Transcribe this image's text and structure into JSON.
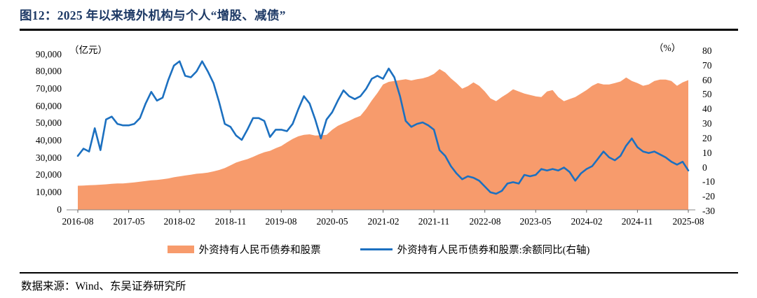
{
  "figure": {
    "title": "图12：2025 年以来境外机构与个人“增股、减债”"
  },
  "footer": {
    "source": "数据来源：Wind、东吴证券研究所"
  },
  "colors": {
    "title_navy": "#1E3A66",
    "area_orange": "#F79B6C",
    "line_blue": "#1C70C0",
    "axis_line": "#8a8a8a",
    "text_black": "#000000"
  },
  "chart_data": {
    "type": "area",
    "combo": "area(left-axis) + line(right-axis)",
    "x_start": "2016-08",
    "x_end": "2025-08",
    "x_frequency": "monthly",
    "x_tick_labels": [
      "2016-08",
      "2017-05",
      "2018-02",
      "2018-11",
      "2019-08",
      "2020-05",
      "2021-02",
      "2021-11",
      "2022-08",
      "2023-05",
      "2024-02",
      "2024-11",
      "2025-08"
    ],
    "x_tick_month_step": 9,
    "left_axis": {
      "unit": "（亿元）",
      "min": 0,
      "max": 90000,
      "ticks": [
        "90,000",
        "80,000",
        "70,000",
        "60,000",
        "50,000",
        "40,000",
        "30,000",
        "20,000",
        "10,000",
        "0"
      ]
    },
    "right_axis": {
      "unit": "（%）",
      "min": -30,
      "max": 80,
      "ticks": [
        "80",
        "70",
        "60",
        "50",
        "40",
        "30",
        "20",
        "10",
        "0",
        "-10",
        "-20",
        "-30"
      ]
    },
    "grid": false,
    "legend_position": "bottom-center",
    "series": [
      {
        "name": "外资持有人民币债券和股票",
        "type": "area",
        "axis": "left",
        "color": "#F79B6C",
        "values": [
          13800,
          13900,
          14100,
          14200,
          14400,
          14600,
          14900,
          15100,
          15100,
          15400,
          15700,
          16100,
          16500,
          16900,
          17100,
          17500,
          18000,
          18700,
          19200,
          19700,
          20200,
          20700,
          21000,
          21400,
          22100,
          22900,
          24000,
          25600,
          27200,
          28300,
          29200,
          30500,
          32000,
          33200,
          34000,
          35500,
          36800,
          38900,
          40900,
          42400,
          43300,
          43600,
          42900,
          43000,
          43300,
          46200,
          48500,
          50000,
          51400,
          53000,
          54300,
          58300,
          63200,
          67500,
          72500,
          74000,
          74500,
          75000,
          75500,
          74800,
          75500,
          76000,
          77000,
          78600,
          81400,
          79400,
          76000,
          73300,
          70000,
          71500,
          73700,
          71700,
          68400,
          64400,
          62800,
          65200,
          67200,
          69700,
          68400,
          67200,
          66400,
          65600,
          65200,
          68400,
          69200,
          65200,
          62800,
          64000,
          65200,
          67200,
          69200,
          71700,
          73300,
          72500,
          72500,
          73300,
          74200,
          76500,
          74500,
          73300,
          71700,
          72500,
          74500,
          75300,
          75300,
          74500,
          71700,
          73700,
          75000
        ]
      },
      {
        "name": "外资持有人民币债券和股票:余额同比(右轴)",
        "type": "line",
        "axis": "right",
        "color": "#1C70C0",
        "values": [
          8,
          13,
          11,
          27,
          12,
          33,
          35,
          30,
          29,
          29,
          30,
          34,
          44,
          52,
          46,
          48,
          60,
          70,
          73,
          63,
          62,
          66,
          73,
          66,
          58,
          45,
          30,
          28,
          22,
          19,
          26,
          34,
          34,
          32,
          21,
          26,
          26,
          25,
          30,
          40,
          49,
          44,
          33,
          20,
          33,
          38,
          46,
          53,
          49,
          47,
          49,
          54,
          61,
          63,
          61,
          68,
          62,
          49,
          32,
          28,
          30,
          31,
          29,
          26,
          12,
          8,
          1,
          -4,
          -8,
          -6,
          -7,
          -9,
          -13,
          -17,
          -18,
          -16,
          -11,
          -10,
          -11,
          -5,
          -6,
          -5,
          -1,
          -2,
          -1,
          -2,
          0,
          -3,
          -9,
          -4,
          -1,
          1,
          6,
          11,
          7,
          5,
          8,
          15,
          20,
          14,
          11,
          10,
          11,
          9,
          7,
          4,
          2,
          4,
          -2
        ]
      }
    ]
  }
}
